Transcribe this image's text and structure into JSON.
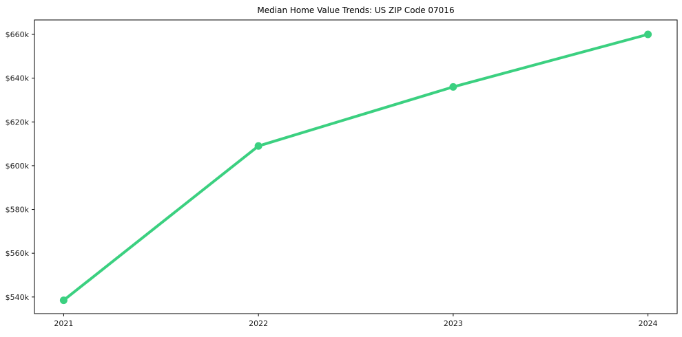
{
  "chart_data": {
    "type": "line",
    "title": "Median Home Value Trends: US ZIP Code 07016",
    "x": [
      2021,
      2022,
      2023,
      2024
    ],
    "series": [
      {
        "name": "Median Home Value",
        "values": [
          538500,
          609000,
          636000,
          660000
        ]
      }
    ],
    "x_tick_labels": [
      "2021",
      "2022",
      "2023",
      "2024"
    ],
    "y_ticks": [
      {
        "value": 540000,
        "label": "$540k"
      },
      {
        "value": 560000,
        "label": "$560k"
      },
      {
        "value": 580000,
        "label": "$580k"
      },
      {
        "value": 600000,
        "label": "$600k"
      },
      {
        "value": 620000,
        "label": "$620k"
      },
      {
        "value": 640000,
        "label": "$640k"
      },
      {
        "value": 660000,
        "label": "$660k"
      }
    ],
    "xlim": [
      2020.85,
      2024.15
    ],
    "ylim": [
      532400,
      666600
    ],
    "xlabel": "",
    "ylabel": "",
    "grid": false,
    "legend": "none",
    "line_color": "#3bd080",
    "marker": "circle",
    "line_width": 4,
    "marker_radius": 5.5,
    "background_color": "#ffffff",
    "axis_color": "#000000",
    "tick_label_color": "#1a1a1a"
  }
}
